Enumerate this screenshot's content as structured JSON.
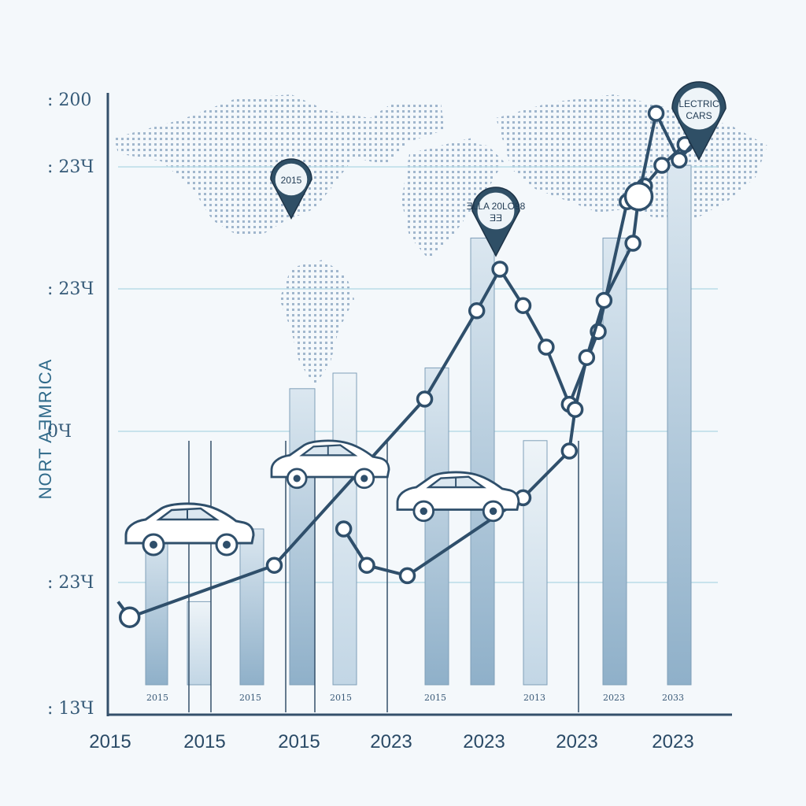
{
  "chart_data": {
    "type": "line",
    "title": "",
    "ylabel": "NORT AƎMRICA",
    "y_ticks": [
      ": 200",
      ": 23Ч",
      ": 23Ч",
      "0Ч",
      ": 23Ч",
      ": 13Ч"
    ],
    "x_tick_labels": [
      "2015",
      "2015",
      "2015",
      "2023",
      "2023",
      "2023",
      "2023"
    ],
    "bar_labels": [
      "2015",
      "2015",
      "2015",
      "2015",
      "2013",
      "2023",
      "2033"
    ],
    "bars": [
      {
        "label": "2015",
        "value": 0.3
      },
      {
        "label": "",
        "value": 0.16
      },
      {
        "label": "2015",
        "value": 0.3
      },
      {
        "label": "",
        "value": 0.57
      },
      {
        "label": "2015",
        "value": 0.6
      },
      {
        "label": "",
        "value": 0.61
      },
      {
        "label": "2015",
        "value": 0.86
      },
      {
        "label": "2013",
        "value": 0.47
      },
      {
        "label": "2023",
        "value": 0.86
      },
      {
        "label": "2033",
        "value": 1.0
      }
    ],
    "series": [
      {
        "values": [
          [
            0.0,
            0.16
          ],
          [
            0.02,
            0.13
          ],
          [
            0.27,
            0.23
          ],
          [
            0.53,
            0.55
          ],
          [
            0.62,
            0.72
          ],
          [
            0.66,
            0.8
          ],
          [
            0.7,
            0.73
          ],
          [
            0.74,
            0.65
          ],
          [
            0.78,
            0.54
          ],
          [
            0.83,
            0.68
          ],
          [
            0.88,
            0.93
          ],
          [
            0.91,
            0.96
          ],
          [
            0.94,
            1.0
          ],
          [
            0.98,
            1.04
          ]
        ]
      },
      {
        "values": [
          [
            0.39,
            0.3
          ],
          [
            0.43,
            0.23
          ],
          [
            0.5,
            0.21
          ],
          [
            0.7,
            0.36
          ],
          [
            0.78,
            0.45
          ],
          [
            0.79,
            0.53
          ],
          [
            0.81,
            0.63
          ],
          [
            0.84,
            0.74
          ],
          [
            0.89,
            0.85
          ],
          [
            0.9,
            0.94
          ],
          [
            0.93,
            1.1
          ],
          [
            0.97,
            1.01
          ],
          [
            1.0,
            1.05
          ]
        ]
      }
    ],
    "annotations": [
      {
        "text": "2015",
        "x": 0.3,
        "y": 1.1
      },
      {
        "text": "ƎLLA 20LO98",
        "sub": "ƎƎ",
        "x": 0.63,
        "y": 0.95
      },
      {
        "text": "LECTRIC",
        "sub": "CARS",
        "x": 1.0,
        "y": 1.3
      }
    ],
    "legend": "none",
    "grid": true
  },
  "colors": {
    "background": "#f4f8fb",
    "line": "#2f4f6b",
    "bar": "#a9c4d9",
    "bar_highlight": "#c9dbe8",
    "axis": "#34506b",
    "pin": "#2f4f66",
    "map_dots": "#5a7fa6",
    "grid": "#b9dce8"
  },
  "icons": [
    "car-icon",
    "car-icon",
    "car-icon",
    "location-pin-icon",
    "location-pin-icon",
    "location-pin-icon",
    "world-map-icon"
  ]
}
